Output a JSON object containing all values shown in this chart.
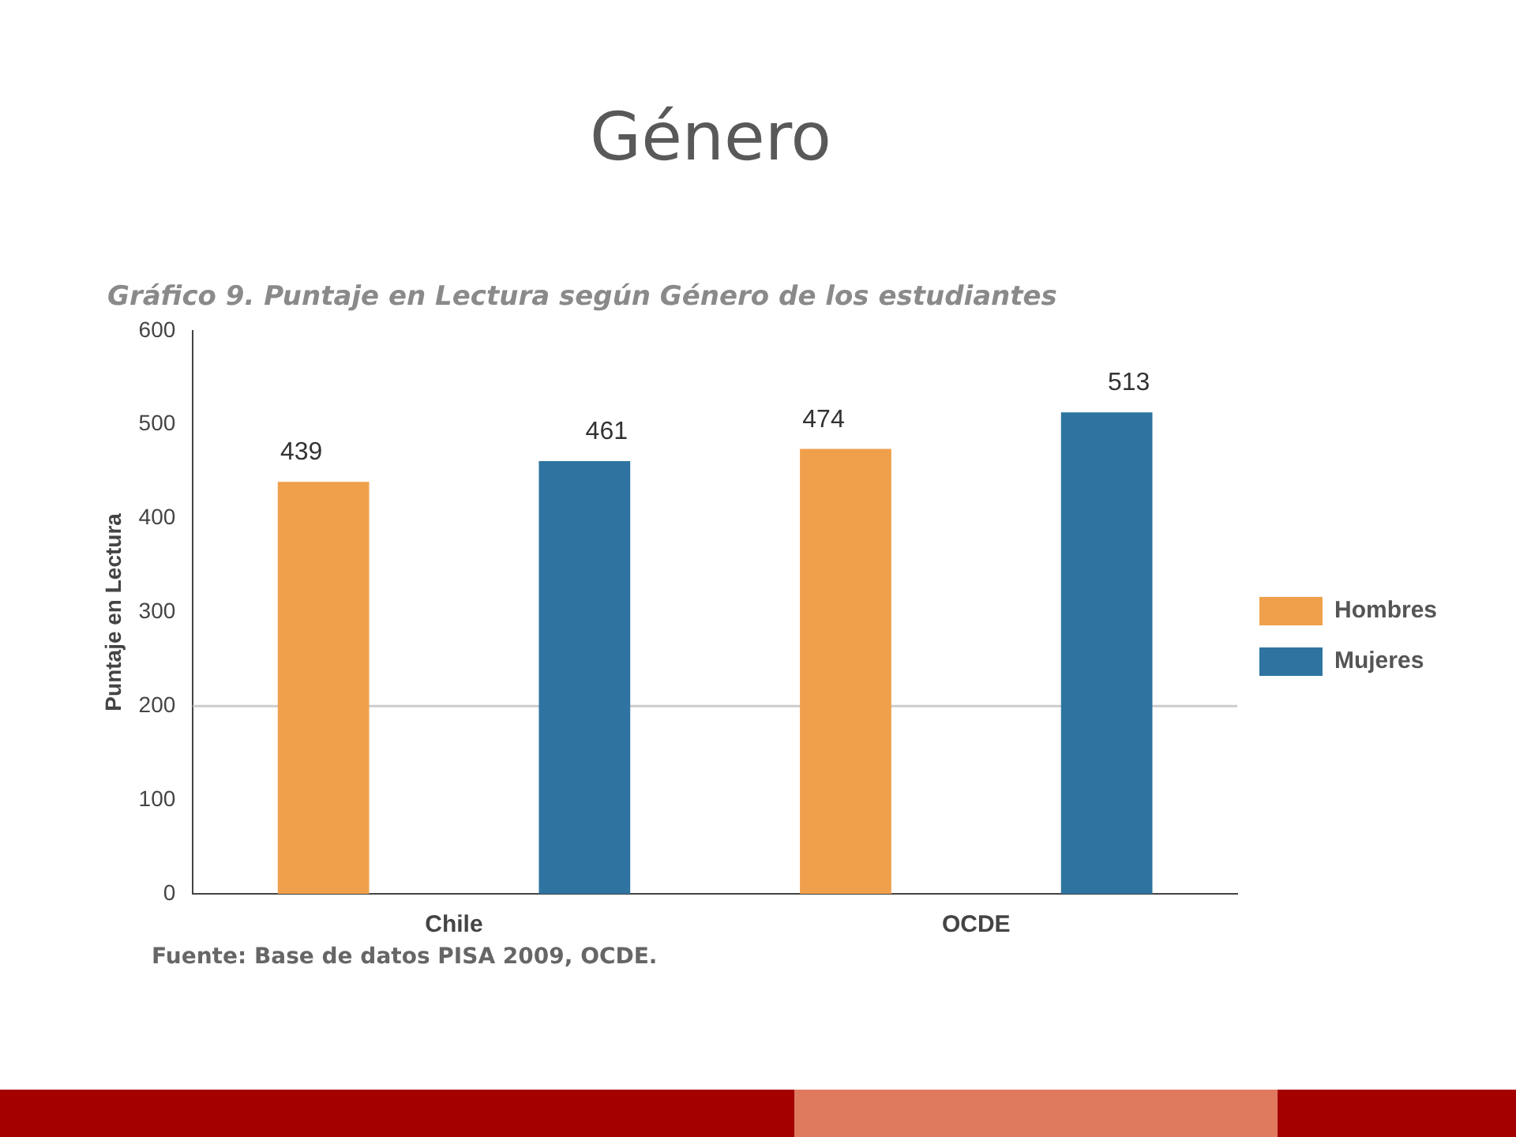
{
  "chart_data": {
    "type": "bar",
    "title": "Género",
    "subtitle": "Gráfico 9. Puntaje en Lectura según Género de los estudiantes",
    "ylabel": "Puntaje en Lectura",
    "categories": [
      "Chile",
      "OCDE"
    ],
    "series": [
      {
        "name": "Hombres",
        "color": "#f0a04b",
        "values": [
          439,
          474
        ]
      },
      {
        "name": "Mujeres",
        "color": "#2f74a0",
        "values": [
          461,
          513
        ]
      }
    ],
    "ylim": [
      0,
      600
    ],
    "yticks": [
      0,
      100,
      200,
      300,
      400,
      500,
      600
    ],
    "grid": false,
    "legend": "right",
    "data_labels": true,
    "ref_lines": [
      {
        "axis": "y",
        "value": 200,
        "color": "#cccccc"
      }
    ],
    "annotations": [
      "Fuente: Base de datos PISA 2009, OCDE."
    ]
  }
}
